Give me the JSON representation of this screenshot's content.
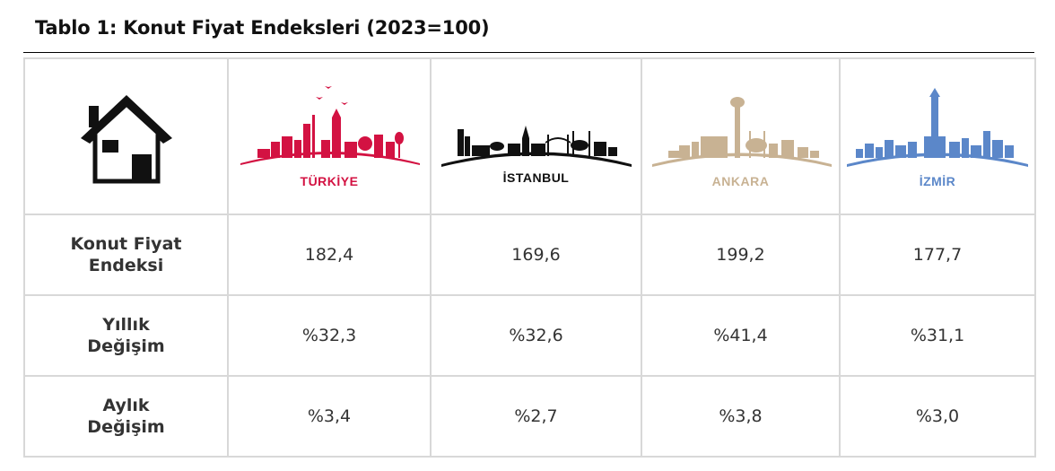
{
  "title": "Tablo 1: Konut Fiyat Endeksleri (2023=100)",
  "header": {
    "icon": "house-icon",
    "columns": [
      {
        "label": "TÜRKİYE",
        "color": "#d31242",
        "icon": "turkiye-skyline-icon"
      },
      {
        "label": "İSTANBUL",
        "color": "#111111",
        "icon": "istanbul-skyline-icon"
      },
      {
        "label": "ANKARA",
        "color": "#c8b293",
        "icon": "ankara-skyline-icon"
      },
      {
        "label": "İZMİR",
        "color": "#5b87c9",
        "icon": "izmir-skyline-icon"
      }
    ]
  },
  "rows": [
    {
      "label_line1": "Konut Fiyat",
      "label_line2": "Endeksi",
      "values": [
        "182,4",
        "169,6",
        "199,2",
        "177,7"
      ]
    },
    {
      "label_line1": "Yıllık",
      "label_line2": "Değişim",
      "values": [
        "%32,3",
        "%32,6",
        "%41,4",
        "%31,1"
      ]
    },
    {
      "label_line1": "Aylık",
      "label_line2": "Değişim",
      "values": [
        "%3,4",
        "%2,7",
        "%3,8",
        "%3,0"
      ]
    }
  ]
}
